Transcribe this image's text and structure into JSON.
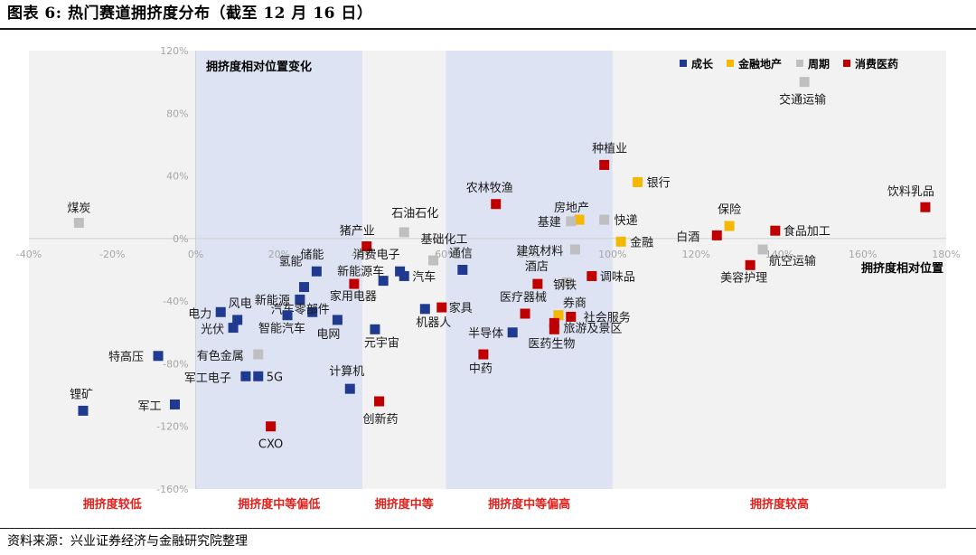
{
  "header": {
    "title": "图表 6: 热门赛道拥挤度分布（截至 12 月 16 日）"
  },
  "footer": {
    "source": "资料来源：兴业证券经济与金融研究院整理"
  },
  "colors": {
    "成长": "#1f3a8f",
    "金融地产": "#f5b800",
    "周期": "#bfbfbf",
    "消费医药": "#c00000"
  },
  "chart_data": {
    "type": "scatter",
    "xlabel": "拥挤度相对位置",
    "ylabel": "拥挤度相对位置变化",
    "xlim": [
      -40,
      180
    ],
    "ylim": [
      -160,
      120
    ],
    "x_ticks": [
      "-40%",
      "-20%",
      "0%",
      "20%",
      "40%",
      "60%",
      "80%",
      "100%",
      "120%",
      "140%",
      "160%",
      "180%"
    ],
    "y_ticks": [
      "-160%",
      "-120%",
      "-80%",
      "-40%",
      "0%",
      "40%",
      "80%",
      "120%"
    ],
    "legend": {
      "position": "top-right",
      "items": [
        "成长",
        "金融地产",
        "周期",
        "消费医药"
      ]
    },
    "bands": [
      {
        "label": "拥挤度较低",
        "x_range": [
          -40,
          0
        ],
        "shaded": false
      },
      {
        "label": "拥挤度中等偏低",
        "x_range": [
          0,
          40
        ],
        "shaded": true
      },
      {
        "label": "拥挤度中等",
        "x_range": [
          40,
          60
        ],
        "shaded": false
      },
      {
        "label": "拥挤度中等偏高",
        "x_range": [
          60,
          100
        ],
        "shaded": true
      },
      {
        "label": "拥挤度较高",
        "x_range": [
          100,
          180
        ],
        "shaded": false
      }
    ],
    "points": [
      {
        "name": "煤炭",
        "group": "周期",
        "x": -28,
        "y": 10
      },
      {
        "name": "交通运输",
        "group": "周期",
        "x": 146,
        "y": 100
      },
      {
        "name": "种植业",
        "group": "消费医药",
        "x": 98,
        "y": 47
      },
      {
        "name": "银行",
        "group": "金融地产",
        "x": 106,
        "y": 36
      },
      {
        "name": "饮料乳品",
        "group": "消费医药",
        "x": 175,
        "y": 20
      },
      {
        "name": "农林牧渔",
        "group": "消费医药",
        "x": 72,
        "y": 22
      },
      {
        "name": "房地产",
        "group": "金融地产",
        "x": 92,
        "y": 12
      },
      {
        "name": "基建",
        "group": "周期",
        "x": 90,
        "y": 11
      },
      {
        "name": "快递",
        "group": "周期",
        "x": 98,
        "y": 12
      },
      {
        "name": "石油石化",
        "group": "周期",
        "x": 50,
        "y": 4
      },
      {
        "name": "保险",
        "group": "金融地产",
        "x": 128,
        "y": 8
      },
      {
        "name": "食品加工",
        "group": "消费医药",
        "x": 139,
        "y": 5
      },
      {
        "name": "白酒",
        "group": "消费医药",
        "x": 125,
        "y": 2
      },
      {
        "name": "金融",
        "group": "金融地产",
        "x": 102,
        "y": -2
      },
      {
        "name": "猪产业",
        "group": "消费医药",
        "x": 41,
        "y": -5
      },
      {
        "name": "基础化工",
        "group": "周期",
        "x": 57,
        "y": -14
      },
      {
        "name": "建筑材料",
        "group": "周期",
        "x": 91,
        "y": -7
      },
      {
        "name": "航空运输",
        "group": "周期",
        "x": 136,
        "y": -7
      },
      {
        "name": "美容护理",
        "group": "消费医药",
        "x": 133,
        "y": -17
      },
      {
        "name": "储能",
        "group": "成长",
        "x": 29,
        "y": -21
      },
      {
        "name": "消费电子",
        "group": "成长",
        "x": 49,
        "y": -21
      },
      {
        "name": "新能源车",
        "group": "成长",
        "x": 45,
        "y": -27
      },
      {
        "name": "汽车",
        "group": "成长",
        "x": 50,
        "y": -24
      },
      {
        "name": "通信",
        "group": "成长",
        "x": 64,
        "y": -20
      },
      {
        "name": "酒店",
        "group": "消费医药",
        "x": 82,
        "y": -29
      },
      {
        "name": "钢铁",
        "group": "周期",
        "x": 89,
        "y": -28
      },
      {
        "name": "调味品",
        "group": "消费医药",
        "x": 95,
        "y": -24
      },
      {
        "name": "氢能",
        "group": "成长",
        "x": 26,
        "y": -31
      },
      {
        "name": "家用电器",
        "group": "消费医药",
        "x": 38,
        "y": -29
      },
      {
        "name": "新能源",
        "group": "成长",
        "x": 25,
        "y": -39
      },
      {
        "name": "汽车零部件",
        "group": "成长",
        "x": 28,
        "y": -47
      },
      {
        "name": "智能汽车",
        "group": "成长",
        "x": 22,
        "y": -49
      },
      {
        "name": "电网",
        "group": "成长",
        "x": 34,
        "y": -52
      },
      {
        "name": "家具",
        "group": "消费医药",
        "x": 59,
        "y": -44
      },
      {
        "name": "机器人",
        "group": "成长",
        "x": 55,
        "y": -45
      },
      {
        "name": "医疗器械",
        "group": "消费医药",
        "x": 79,
        "y": -48
      },
      {
        "name": "券商",
        "group": "金融地产",
        "x": 87,
        "y": -49
      },
      {
        "name": "社会服务",
        "group": "消费医药",
        "x": 90,
        "y": -50
      },
      {
        "name": "旅游及景区",
        "group": "消费医药",
        "x": 86,
        "y": -54
      },
      {
        "name": "医药生物",
        "group": "消费医药",
        "x": 86,
        "y": -58
      },
      {
        "name": "半导体",
        "group": "成长",
        "x": 76,
        "y": -60
      },
      {
        "name": "电力",
        "group": "成长",
        "x": 6,
        "y": -47
      },
      {
        "name": "风电",
        "group": "成长",
        "x": 10,
        "y": -52
      },
      {
        "name": "光伏",
        "group": "成长",
        "x": 9,
        "y": -57
      },
      {
        "name": "元宇宙",
        "group": "成长",
        "x": 43,
        "y": -58
      },
      {
        "name": "中药",
        "group": "消费医药",
        "x": 69,
        "y": -74
      },
      {
        "name": "特高压",
        "group": "成长",
        "x": -9,
        "y": -75
      },
      {
        "name": "有色金属",
        "group": "周期",
        "x": 15,
        "y": -74
      },
      {
        "name": "军工电子",
        "group": "成长",
        "x": 12,
        "y": -88
      },
      {
        "name": "5G",
        "group": "成长",
        "x": 15,
        "y": -88
      },
      {
        "name": "计算机",
        "group": "成长",
        "x": 37,
        "y": -96
      },
      {
        "name": "创新药",
        "group": "消费医药",
        "x": 44,
        "y": -104
      },
      {
        "name": "锂矿",
        "group": "成长",
        "x": -27,
        "y": -110
      },
      {
        "name": "军工",
        "group": "成长",
        "x": -5,
        "y": -106
      },
      {
        "name": "CXO",
        "group": "消费医药",
        "x": 18,
        "y": -120
      }
    ]
  }
}
